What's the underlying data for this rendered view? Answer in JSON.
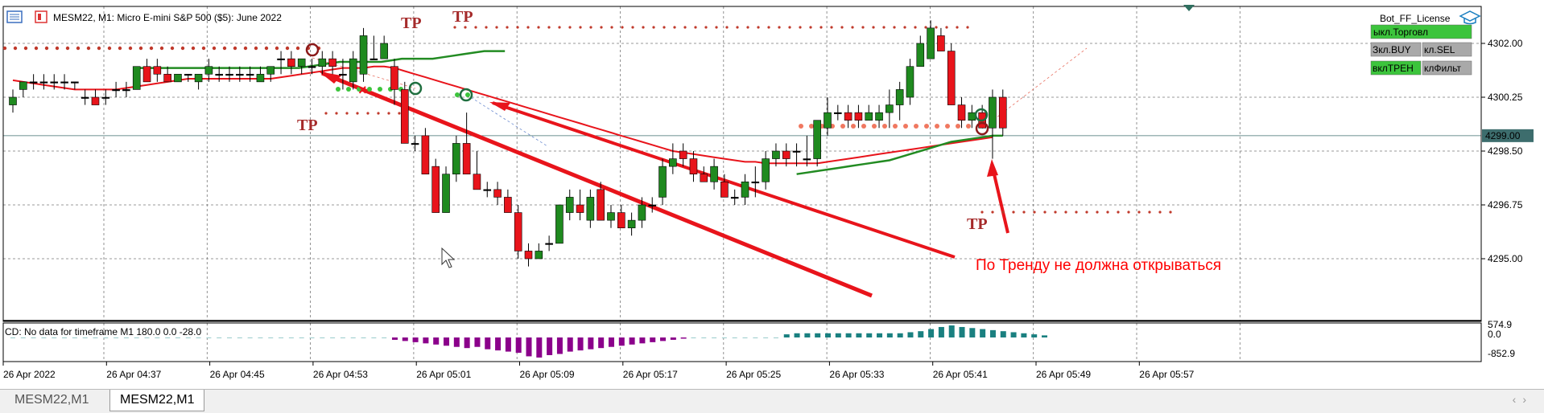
{
  "header": {
    "title": "MESM22, M1:  Micro E-mini S&P 500 ($5): June 2022"
  },
  "panel": {
    "ea_name": "Bot_FF_License",
    "buttons": [
      {
        "label": "ыкл.Торговл",
        "color": "#3cc43c"
      },
      {
        "label": "Зкл.BUY",
        "color": "#a9a9a9"
      },
      {
        "label": "кл.SEL",
        "color": "#a9a9a9"
      },
      {
        "label": "вклТРЕН",
        "color": "#3cc43c"
      },
      {
        "label": "клФильт",
        "color": "#a9a9a9"
      }
    ]
  },
  "annotations": {
    "tp_label": "TP",
    "comment": "По Тренду не должна открываться",
    "comment_color": "#ff0000"
  },
  "indicator": {
    "title": "CD: No data for timeframe M1 180.0 0.0 -28.0",
    "levels": [
      "574.9",
      "0.0",
      "-852.9"
    ]
  },
  "chart_data": {
    "type": "candlestick",
    "symbol": "MESM22",
    "timeframe": "M1",
    "y_ticks": [
      4302.0,
      4300.25,
      4298.5,
      4296.75,
      4295.0
    ],
    "y_tick_labels": [
      "4302.00",
      "4300.25",
      "4298.50",
      "4296.75",
      "4295.00"
    ],
    "current_price": 4299.0,
    "current_price_label": "4299.00",
    "x_tick_labels": [
      "26 Apr 2022",
      "26 Apr 04:37",
      "26 Apr 04:45",
      "26 Apr 04:53",
      "26 Apr 05:01",
      "26 Apr 05:09",
      "26 Apr 05:17",
      "26 Apr 05:25",
      "26 Apr 05:33",
      "26 Apr 05:41",
      "26 Apr 05:49",
      "26 Apr 05:57"
    ],
    "candles": [
      {
        "o": 4300.0,
        "h": 4300.5,
        "l": 4299.75,
        "c": 4300.25
      },
      {
        "o": 4300.5,
        "h": 4300.75,
        "l": 4300.25,
        "c": 4300.75
      },
      {
        "o": 4300.75,
        "h": 4301.0,
        "l": 4300.5,
        "c": 4300.75
      },
      {
        "o": 4300.75,
        "h": 4301.0,
        "l": 4300.5,
        "c": 4300.75
      },
      {
        "o": 4300.75,
        "h": 4301.0,
        "l": 4300.5,
        "c": 4300.75
      },
      {
        "o": 4300.75,
        "h": 4301.0,
        "l": 4300.5,
        "c": 4300.75
      },
      {
        "o": 4300.75,
        "h": 4300.75,
        "l": 4300.5,
        "c": 4300.75
      },
      {
        "o": 4300.25,
        "h": 4300.5,
        "l": 4300.0,
        "c": 4300.25
      },
      {
        "o": 4300.25,
        "h": 4300.5,
        "l": 4300.0,
        "c": 4300.0
      },
      {
        "o": 4300.25,
        "h": 4300.5,
        "l": 4300.0,
        "c": 4300.25
      },
      {
        "o": 4300.5,
        "h": 4300.75,
        "l": 4300.25,
        "c": 4300.5
      },
      {
        "o": 4300.5,
        "h": 4300.75,
        "l": 4300.25,
        "c": 4300.5
      },
      {
        "o": 4300.5,
        "h": 4301.25,
        "l": 4300.5,
        "c": 4301.25
      },
      {
        "o": 4301.25,
        "h": 4301.5,
        "l": 4300.75,
        "c": 4300.75
      },
      {
        "o": 4301.25,
        "h": 4301.5,
        "l": 4300.75,
        "c": 4301.0
      },
      {
        "o": 4301.0,
        "h": 4301.25,
        "l": 4300.75,
        "c": 4300.75
      },
      {
        "o": 4300.75,
        "h": 4301.0,
        "l": 4300.75,
        "c": 4301.0
      },
      {
        "o": 4301.0,
        "h": 4301.0,
        "l": 4300.75,
        "c": 4301.0
      },
      {
        "o": 4300.75,
        "h": 4301.0,
        "l": 4300.5,
        "c": 4301.0
      },
      {
        "o": 4301.0,
        "h": 4301.5,
        "l": 4300.75,
        "c": 4301.25
      },
      {
        "o": 4301.0,
        "h": 4301.25,
        "l": 4300.75,
        "c": 4301.0
      },
      {
        "o": 4301.0,
        "h": 4301.25,
        "l": 4300.75,
        "c": 4301.0
      },
      {
        "o": 4301.0,
        "h": 4301.25,
        "l": 4300.75,
        "c": 4301.0
      },
      {
        "o": 4301.0,
        "h": 4301.25,
        "l": 4300.75,
        "c": 4301.0
      },
      {
        "o": 4300.75,
        "h": 4301.25,
        "l": 4300.75,
        "c": 4301.0
      },
      {
        "o": 4301.0,
        "h": 4301.25,
        "l": 4300.75,
        "c": 4301.25
      },
      {
        "o": 4301.5,
        "h": 4301.75,
        "l": 4301.0,
        "c": 4301.5
      },
      {
        "o": 4301.5,
        "h": 4301.75,
        "l": 4301.0,
        "c": 4301.25
      },
      {
        "o": 4301.25,
        "h": 4301.5,
        "l": 4301.0,
        "c": 4301.5
      },
      {
        "o": 4301.25,
        "h": 4301.5,
        "l": 4301.0,
        "c": 4301.25
      },
      {
        "o": 4301.25,
        "h": 4301.75,
        "l": 4301.0,
        "c": 4301.5
      },
      {
        "o": 4301.5,
        "h": 4301.75,
        "l": 4301.0,
        "c": 4301.25
      },
      {
        "o": 4301.0,
        "h": 4301.5,
        "l": 4300.5,
        "c": 4301.0
      },
      {
        "o": 4300.75,
        "h": 4301.75,
        "l": 4300.5,
        "c": 4301.5
      },
      {
        "o": 4301.0,
        "h": 4302.5,
        "l": 4300.75,
        "c": 4302.25
      },
      {
        "o": 4301.5,
        "h": 4302.25,
        "l": 4301.5,
        "c": 4301.5
      },
      {
        "o": 4301.5,
        "h": 4302.25,
        "l": 4301.5,
        "c": 4302.0
      },
      {
        "o": 4301.25,
        "h": 4301.5,
        "l": 4300.0,
        "c": 4300.5
      },
      {
        "o": 4300.5,
        "h": 4300.75,
        "l": 4298.75,
        "c": 4298.75
      },
      {
        "o": 4298.75,
        "h": 4299.0,
        "l": 4298.5,
        "c": 4298.75
      },
      {
        "o": 4299.0,
        "h": 4299.25,
        "l": 4297.75,
        "c": 4297.75
      },
      {
        "o": 4298.0,
        "h": 4298.25,
        "l": 4296.5,
        "c": 4296.5
      },
      {
        "o": 4296.5,
        "h": 4298.0,
        "l": 4296.5,
        "c": 4297.75
      },
      {
        "o": 4297.75,
        "h": 4299.0,
        "l": 4297.5,
        "c": 4298.75
      },
      {
        "o": 4298.75,
        "h": 4299.75,
        "l": 4297.75,
        "c": 4297.75
      },
      {
        "o": 4297.75,
        "h": 4298.5,
        "l": 4297.25,
        "c": 4297.25
      },
      {
        "o": 4297.25,
        "h": 4297.5,
        "l": 4297.0,
        "c": 4297.25
      },
      {
        "o": 4297.25,
        "h": 4297.5,
        "l": 4296.75,
        "c": 4297.0
      },
      {
        "o": 4297.0,
        "h": 4297.25,
        "l": 4296.5,
        "c": 4296.5
      },
      {
        "o": 4296.5,
        "h": 4296.75,
        "l": 4295.0,
        "c": 4295.25
      },
      {
        "o": 4295.25,
        "h": 4295.5,
        "l": 4294.75,
        "c": 4295.0
      },
      {
        "o": 4295.0,
        "h": 4295.5,
        "l": 4295.0,
        "c": 4295.25
      },
      {
        "o": 4295.5,
        "h": 4295.75,
        "l": 4295.25,
        "c": 4295.5
      },
      {
        "o": 4295.5,
        "h": 4296.75,
        "l": 4295.5,
        "c": 4296.75
      },
      {
        "o": 4296.5,
        "h": 4297.25,
        "l": 4296.25,
        "c": 4297.0
      },
      {
        "o": 4296.75,
        "h": 4297.25,
        "l": 4296.25,
        "c": 4296.5
      },
      {
        "o": 4296.25,
        "h": 4297.25,
        "l": 4296.0,
        "c": 4297.0
      },
      {
        "o": 4297.25,
        "h": 4297.5,
        "l": 4296.25,
        "c": 4296.25
      },
      {
        "o": 4296.25,
        "h": 4296.75,
        "l": 4296.0,
        "c": 4296.5
      },
      {
        "o": 4296.5,
        "h": 4296.75,
        "l": 4296.0,
        "c": 4296.0
      },
      {
        "o": 4296.0,
        "h": 4296.5,
        "l": 4295.75,
        "c": 4296.25
      },
      {
        "o": 4296.25,
        "h": 4297.0,
        "l": 4296.0,
        "c": 4296.75
      },
      {
        "o": 4296.75,
        "h": 4297.0,
        "l": 4296.5,
        "c": 4296.75
      },
      {
        "o": 4297.0,
        "h": 4298.25,
        "l": 4296.75,
        "c": 4298.0
      },
      {
        "o": 4298.0,
        "h": 4298.75,
        "l": 4297.75,
        "c": 4298.25
      },
      {
        "o": 4298.5,
        "h": 4298.75,
        "l": 4298.0,
        "c": 4298.25
      },
      {
        "o": 4298.25,
        "h": 4298.5,
        "l": 4297.5,
        "c": 4297.75
      },
      {
        "o": 4297.75,
        "h": 4298.0,
        "l": 4297.5,
        "c": 4297.5
      },
      {
        "o": 4297.5,
        "h": 4298.25,
        "l": 4297.25,
        "c": 4298.0
      },
      {
        "o": 4297.5,
        "h": 4297.75,
        "l": 4297.0,
        "c": 4297.0
      },
      {
        "o": 4297.0,
        "h": 4297.25,
        "l": 4296.75,
        "c": 4297.0
      },
      {
        "o": 4297.0,
        "h": 4297.75,
        "l": 4296.75,
        "c": 4297.5
      },
      {
        "o": 4297.5,
        "h": 4298.0,
        "l": 4297.0,
        "c": 4297.5
      },
      {
        "o": 4297.5,
        "h": 4298.5,
        "l": 4297.25,
        "c": 4298.25
      },
      {
        "o": 4298.25,
        "h": 4298.75,
        "l": 4298.0,
        "c": 4298.5
      },
      {
        "o": 4298.5,
        "h": 4298.75,
        "l": 4298.0,
        "c": 4298.25
      },
      {
        "o": 4298.5,
        "h": 4298.75,
        "l": 4298.0,
        "c": 4298.5
      },
      {
        "o": 4298.25,
        "h": 4299.0,
        "l": 4298.0,
        "c": 4298.25
      },
      {
        "o": 4298.25,
        "h": 4299.5,
        "l": 4298.0,
        "c": 4299.5
      },
      {
        "o": 4299.25,
        "h": 4300.25,
        "l": 4299.0,
        "c": 4299.75
      },
      {
        "o": 4299.75,
        "h": 4300.0,
        "l": 4299.5,
        "c": 4299.75
      },
      {
        "o": 4299.75,
        "h": 4300.0,
        "l": 4299.25,
        "c": 4299.5
      },
      {
        "o": 4299.75,
        "h": 4300.0,
        "l": 4299.25,
        "c": 4299.5
      },
      {
        "o": 4299.5,
        "h": 4300.0,
        "l": 4299.5,
        "c": 4299.75
      },
      {
        "o": 4299.5,
        "h": 4300.0,
        "l": 4299.25,
        "c": 4299.75
      },
      {
        "o": 4299.75,
        "h": 4300.5,
        "l": 4299.25,
        "c": 4300.0
      },
      {
        "o": 4300.0,
        "h": 4300.75,
        "l": 4299.5,
        "c": 4300.5
      },
      {
        "o": 4300.25,
        "h": 4301.5,
        "l": 4300.0,
        "c": 4301.25
      },
      {
        "o": 4301.25,
        "h": 4302.25,
        "l": 4301.25,
        "c": 4302.0
      },
      {
        "o": 4301.5,
        "h": 4302.75,
        "l": 4301.5,
        "c": 4302.5
      },
      {
        "o": 4302.25,
        "h": 4302.5,
        "l": 4301.75,
        "c": 4301.75
      },
      {
        "o": 4301.75,
        "h": 4302.0,
        "l": 4300.0,
        "c": 4300.0
      },
      {
        "o": 4300.0,
        "h": 4300.25,
        "l": 4299.25,
        "c": 4299.5
      },
      {
        "o": 4299.5,
        "h": 4300.0,
        "l": 4299.25,
        "c": 4299.75
      },
      {
        "o": 4299.75,
        "h": 4300.0,
        "l": 4299.25,
        "c": 4299.25
      },
      {
        "o": 4299.25,
        "h": 4300.5,
        "l": 4298.25,
        "c": 4300.25
      },
      {
        "o": 4300.25,
        "h": 4300.5,
        "l": 4299.0,
        "c": 4299.25
      }
    ],
    "ma_red": [
      4300.8,
      4300.75,
      4300.7,
      4300.65,
      4300.6,
      4300.55,
      4300.5,
      4300.5,
      4300.5,
      4300.5,
      4300.5,
      4300.55,
      4300.6,
      4300.65,
      4300.7,
      4300.75,
      4300.8,
      4300.85,
      4300.85,
      4300.85,
      4300.85,
      4300.85,
      4300.85,
      4300.85,
      4300.85,
      4300.85,
      4300.9,
      4300.95,
      4301.0,
      4301.05,
      4301.1,
      4301.15,
      4301.2,
      4301.2,
      4301.2,
      4301.25,
      4301.25,
      4301.2,
      4301.1,
      4301.0,
      4300.9,
      4300.8,
      4300.7,
      4300.6,
      4300.5,
      4300.4,
      4300.3,
      4300.2,
      4300.1,
      4300.0,
      4299.9,
      4299.8,
      4299.7,
      4299.6,
      4299.5,
      4299.4,
      4299.3,
      4299.2,
      4299.1,
      4299.0,
      4298.9,
      4298.8,
      4298.7,
      4298.6,
      4298.5,
      4298.45,
      4298.4,
      4298.35,
      4298.3,
      4298.25,
      4298.2,
      4298.15,
      4298.15,
      4298.1,
      4298.1,
      4298.1,
      4298.1,
      4298.1,
      4298.1,
      4298.15,
      4298.2,
      4298.25,
      4298.3,
      4298.35,
      4298.4,
      4298.45,
      4298.5,
      4298.55,
      4298.6,
      4298.65,
      4298.7,
      4298.75,
      4298.8,
      4298.85,
      4298.9,
      4298.95
    ],
    "ma_green": [
      4301.2,
      4301.2,
      4301.2,
      4301.2,
      4301.2,
      4301.2,
      4301.2,
      4301.2,
      4301.2,
      4301.2,
      4301.2,
      4301.2,
      4301.2,
      4301.2,
      4301.2,
      4301.2,
      4301.2,
      4301.25,
      4301.3,
      4301.35,
      4301.4,
      4301.4,
      4301.4,
      4301.4,
      4301.4,
      4301.45,
      4301.5,
      4301.5,
      4301.5,
      4301.5,
      4301.55,
      4301.6,
      4301.65,
      4301.7,
      4301.75,
      4301.75,
      4301.75
    ],
    "ma_green_late": [
      4297.75,
      4297.8,
      4297.85,
      4297.9,
      4297.95,
      4298.0,
      4298.05,
      4298.1,
      4298.15,
      4298.2,
      4298.3,
      4298.4,
      4298.5,
      4298.6,
      4298.7,
      4298.8,
      4298.85,
      4298.9,
      4298.95,
      4299.0,
      4299.0
    ],
    "ma_green_late_start": 76,
    "cd_histogram": [
      0,
      0,
      0,
      0,
      0,
      0,
      0,
      0,
      0,
      0,
      0,
      0,
      0,
      0,
      0,
      0,
      0,
      0,
      0,
      0,
      0,
      0,
      0,
      0,
      0,
      0,
      0,
      0,
      0,
      0,
      0,
      0,
      0,
      0,
      0,
      0,
      0,
      -100,
      -150,
      -200,
      -250,
      -300,
      -350,
      -400,
      -450,
      -400,
      -500,
      -550,
      -600,
      -650,
      -800,
      -852.9,
      -750,
      -700,
      -600,
      -550,
      -500,
      -450,
      -400,
      -350,
      -300,
      -250,
      -200,
      -150,
      -100,
      -50,
      0,
      0,
      0,
      0,
      0,
      0,
      0,
      0,
      0,
      150,
      200,
      200,
      200,
      200,
      200,
      200,
      200,
      200,
      200,
      200,
      200,
      250,
      300,
      400,
      500,
      574.9,
      500,
      450,
      400,
      350,
      300,
      250,
      200,
      150,
      100
    ]
  }
}
